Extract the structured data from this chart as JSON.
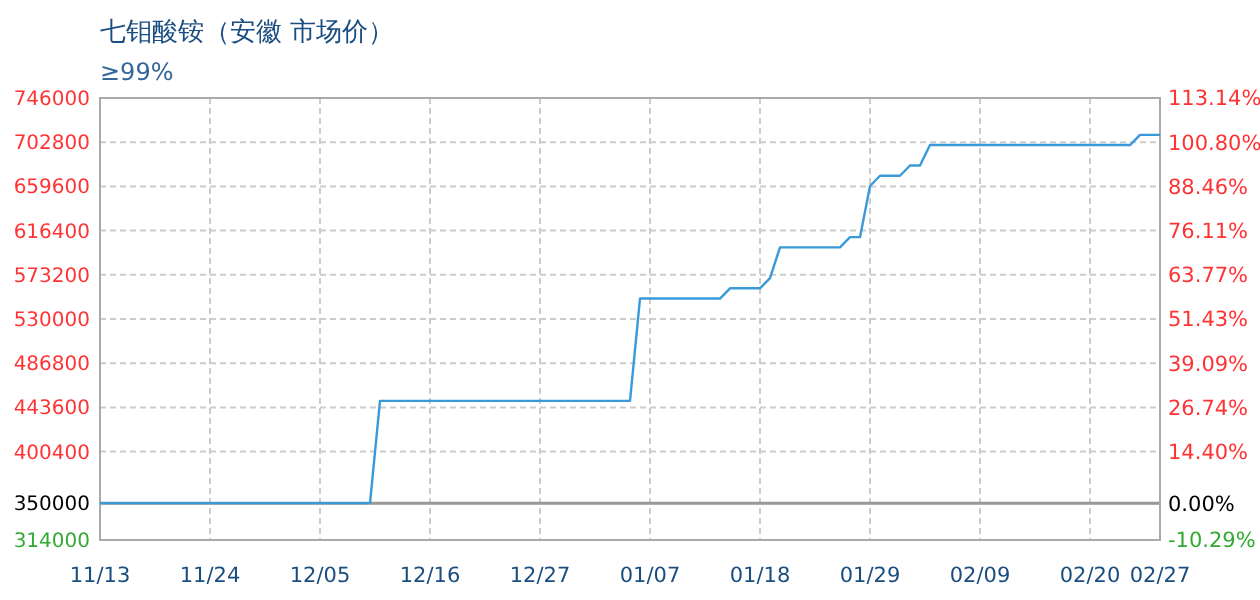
{
  "chart_data": {
    "type": "line",
    "title": "七钼酸铵（安徽 市场价）",
    "subtitle": "≥99%",
    "categories": [
      "11/13",
      null,
      null,
      null,
      null,
      null,
      null,
      null,
      null,
      null,
      null,
      "11/24",
      null,
      null,
      null,
      null,
      null,
      null,
      null,
      null,
      null,
      null,
      "12/05",
      null,
      null,
      null,
      null,
      null,
      null,
      null,
      null,
      null,
      null,
      "12/16",
      null,
      null,
      null,
      null,
      null,
      null,
      null,
      null,
      null,
      null,
      "12/27",
      null,
      null,
      null,
      null,
      null,
      null,
      null,
      null,
      null,
      null,
      "01/07",
      null,
      null,
      null,
      null,
      null,
      null,
      null,
      null,
      null,
      null,
      "01/18",
      null,
      null,
      null,
      null,
      null,
      null,
      null,
      null,
      null,
      null,
      "01/29",
      null,
      null,
      null,
      null,
      null,
      null,
      null,
      null,
      null,
      null,
      "02/09",
      null,
      null,
      null,
      null,
      null,
      null,
      null,
      null,
      null,
      null,
      "02/20",
      null,
      null,
      null,
      null,
      null,
      null,
      "02/27"
    ],
    "series": [
      {
        "color": "#3a9ad9",
        "values": [
          350000,
          350000,
          350000,
          350000,
          350000,
          350000,
          350000,
          350000,
          350000,
          350000,
          350000,
          350000,
          350000,
          350000,
          350000,
          350000,
          350000,
          350000,
          350000,
          350000,
          350000,
          350000,
          350000,
          350000,
          350000,
          350000,
          350000,
          350000,
          450000,
          450000,
          450000,
          450000,
          450000,
          450000,
          450000,
          450000,
          450000,
          450000,
          450000,
          450000,
          450000,
          450000,
          450000,
          450000,
          450000,
          450000,
          450000,
          450000,
          450000,
          450000,
          450000,
          450000,
          450000,
          450000,
          550000,
          550000,
          550000,
          550000,
          550000,
          550000,
          550000,
          550000,
          550000,
          560000,
          560000,
          560000,
          560000,
          570000,
          600000,
          600000,
          600000,
          600000,
          600000,
          600000,
          600000,
          610000,
          610000,
          660000,
          670000,
          670000,
          670000,
          680000,
          680000,
          700000,
          700000,
          700000,
          700000,
          700000,
          700000,
          700000,
          700000,
          700000,
          700000,
          700000,
          700000,
          700000,
          700000,
          700000,
          700000,
          700000,
          700000,
          700000,
          700000,
          700000,
          710000,
          710000,
          710000
        ]
      }
    ],
    "ylim": [
      314000,
      746000
    ],
    "yticks": [
      314000,
      350000,
      400400,
      443600,
      486800,
      530000,
      573200,
      616400,
      659600,
      702800,
      746000
    ],
    "y2lim": [
      -10.29,
      113.14
    ],
    "y2ticks": [
      {
        "value": -10.29,
        "label": "-10.29%"
      },
      {
        "value": 0,
        "label": "0.00%"
      },
      {
        "value": 14.4,
        "label": "14.40%"
      },
      {
        "value": 26.74,
        "label": "26.74%"
      },
      {
        "value": 39.09,
        "label": "39.09%"
      },
      {
        "value": 51.43,
        "label": "51.43%"
      },
      {
        "value": 63.77,
        "label": "63.77%"
      },
      {
        "value": 76.11,
        "label": "76.11%"
      },
      {
        "value": 88.46,
        "label": "88.46%"
      },
      {
        "value": 100.8,
        "label": "100.80%"
      },
      {
        "value": 113.14,
        "label": "113.14%"
      }
    ],
    "ref_lines": [
      {
        "axis": "y2",
        "value": 0,
        "color": "#999999"
      }
    ],
    "grid": true,
    "marker": "none",
    "line_style": "solid"
  }
}
